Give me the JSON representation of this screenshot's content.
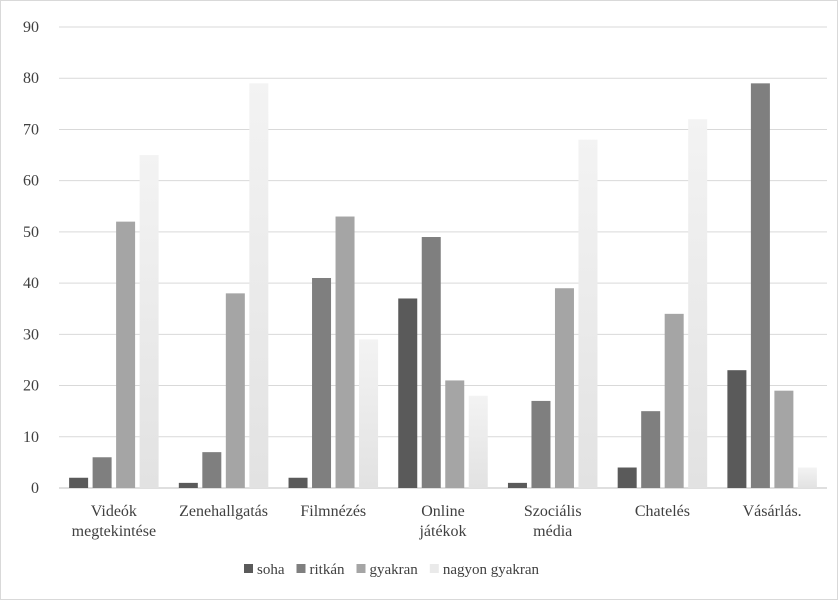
{
  "chart_data": {
    "type": "bar",
    "categories": [
      [
        "Videók",
        "megtekintése"
      ],
      [
        "Zenehallgatás"
      ],
      [
        "Filmnézés"
      ],
      [
        "Online",
        "játékok"
      ],
      [
        "Szociális",
        "média"
      ],
      [
        "Chatelés"
      ],
      [
        "Vásárlás."
      ]
    ],
    "series": [
      {
        "name": "soha",
        "values": [
          2,
          1,
          2,
          37,
          1,
          4,
          23
        ],
        "color": "#5a5a5a"
      },
      {
        "name": "ritkán",
        "values": [
          6,
          7,
          41,
          49,
          17,
          15,
          79
        ],
        "color": "#7f7f7f"
      },
      {
        "name": "gyakran",
        "values": [
          52,
          38,
          53,
          21,
          39,
          34,
          19
        ],
        "color": "#a5a5a5"
      },
      {
        "name": "nagyon gyakran",
        "values": [
          65,
          79,
          29,
          18,
          68,
          72,
          4
        ],
        "color": "#ececec"
      }
    ],
    "ylim": [
      0,
      90
    ],
    "yticks": [
      0,
      10,
      20,
      30,
      40,
      50,
      60,
      70,
      80,
      90
    ],
    "grid": true,
    "legend_position": "bottom"
  }
}
